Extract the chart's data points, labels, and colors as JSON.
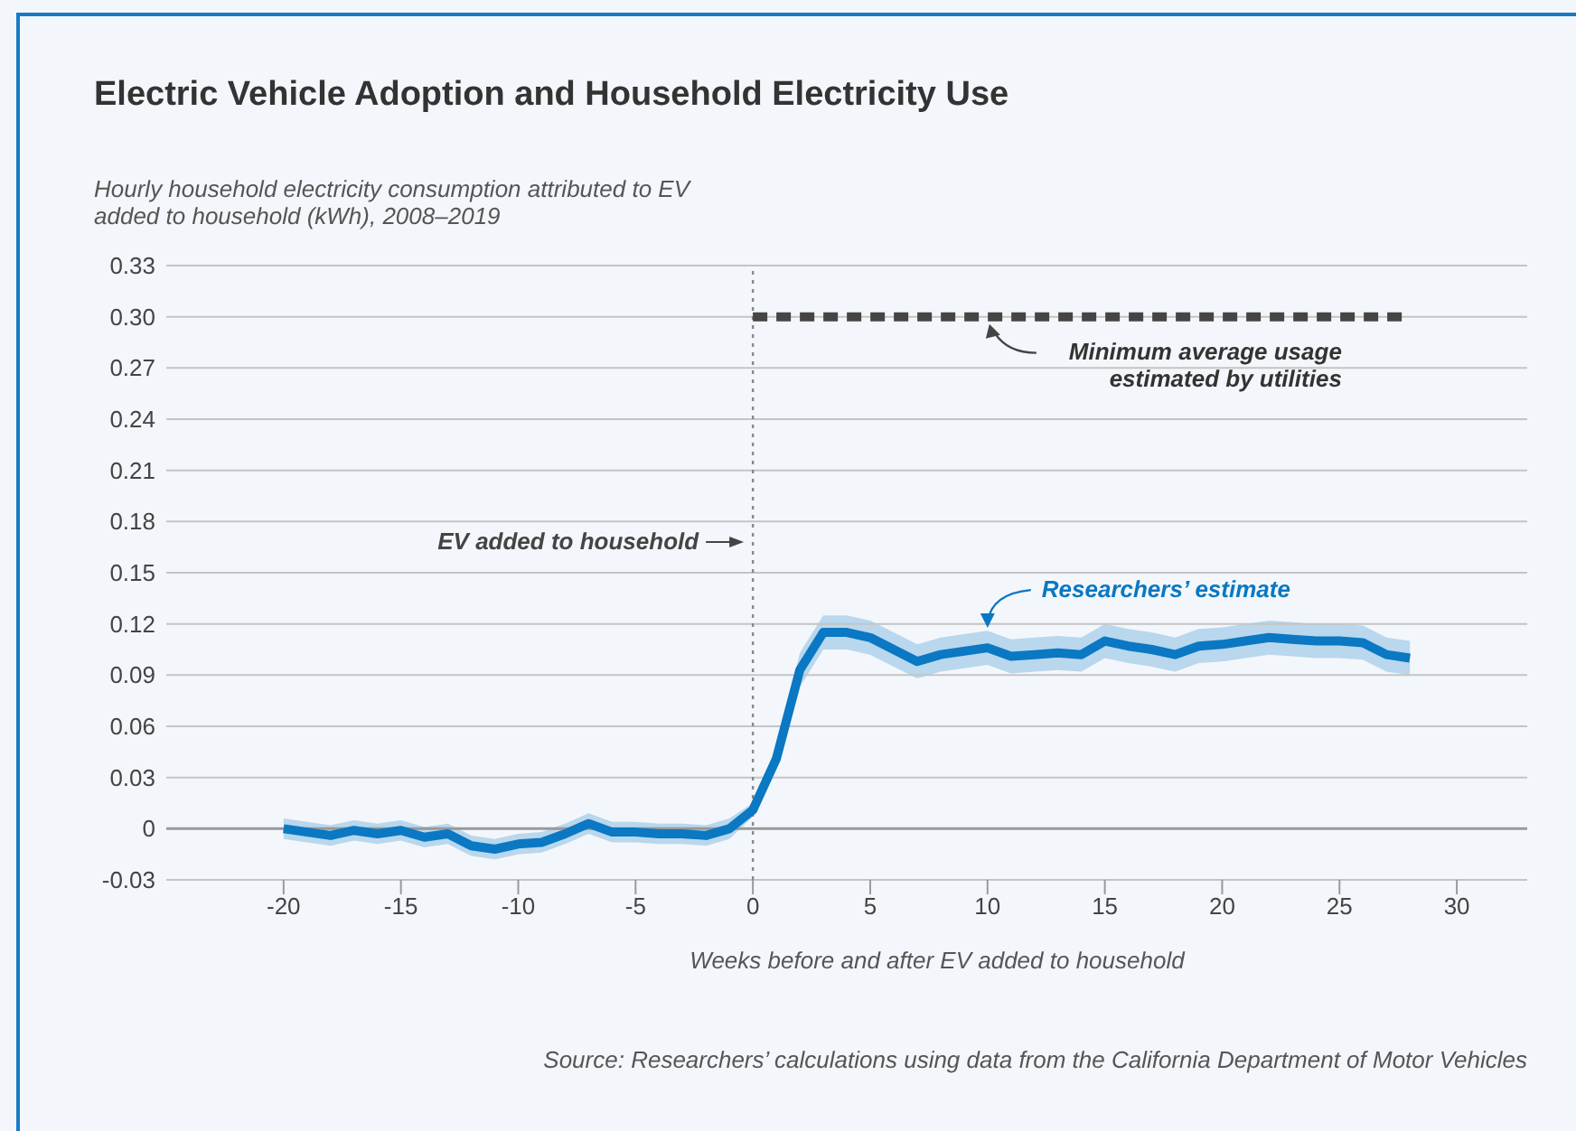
{
  "chart_data": {
    "type": "line",
    "title": "Electric Vehicle Adoption and Household Electricity Use",
    "ylabel": "Hourly household electricity consumption attributed to EV added to household (kWh), 2008–2019",
    "xlabel": "Weeks before and after EV added to household",
    "annotations": [
      "Source: Researchers’ calculations using data from the California Department of Motor Vehicles"
    ],
    "x": [
      -20,
      -19,
      -18,
      -17,
      -16,
      -15,
      -14,
      -13,
      -12,
      -11,
      -10,
      -9,
      -8,
      -7,
      -6,
      -5,
      -4,
      -3,
      -2,
      -1,
      0,
      1,
      2,
      3,
      4,
      5,
      6,
      7,
      8,
      9,
      10,
      11,
      12,
      13,
      14,
      15,
      16,
      17,
      18,
      19,
      20,
      21,
      22,
      23,
      24,
      25,
      26,
      27,
      28
    ],
    "series": [
      {
        "name": "Researchers’ estimate",
        "color": "#0a78c2",
        "values": [
          0.0,
          -0.002,
          -0.004,
          -0.001,
          -0.003,
          -0.001,
          -0.005,
          -0.003,
          -0.01,
          -0.012,
          -0.009,
          -0.008,
          -0.003,
          0.003,
          -0.002,
          -0.002,
          -0.003,
          -0.003,
          -0.004,
          0.0,
          0.011,
          0.041,
          0.093,
          0.115,
          0.115,
          0.112,
          0.105,
          0.098,
          0.102,
          0.104,
          0.106,
          0.101,
          0.102,
          0.103,
          0.102,
          0.11,
          0.107,
          0.105,
          0.102,
          0.107,
          0.108,
          0.11,
          0.112,
          0.111,
          0.11,
          0.11,
          0.109,
          0.102,
          0.1
        ],
        "lower": [
          -0.006,
          -0.008,
          -0.01,
          -0.007,
          -0.009,
          -0.007,
          -0.011,
          -0.009,
          -0.016,
          -0.018,
          -0.015,
          -0.014,
          -0.009,
          -0.003,
          -0.008,
          -0.008,
          -0.009,
          -0.009,
          -0.01,
          -0.006,
          0.007,
          0.037,
          0.083,
          0.105,
          0.105,
          0.102,
          0.095,
          0.088,
          0.092,
          0.094,
          0.096,
          0.091,
          0.092,
          0.093,
          0.092,
          0.1,
          0.097,
          0.095,
          0.092,
          0.097,
          0.098,
          0.1,
          0.102,
          0.101,
          0.1,
          0.1,
          0.099,
          0.092,
          0.09
        ],
        "upper": [
          0.006,
          0.004,
          0.002,
          0.005,
          0.003,
          0.005,
          0.001,
          0.003,
          -0.004,
          -0.006,
          -0.003,
          -0.002,
          0.003,
          0.009,
          0.004,
          0.004,
          0.003,
          0.003,
          0.002,
          0.006,
          0.015,
          0.045,
          0.103,
          0.125,
          0.125,
          0.122,
          0.115,
          0.108,
          0.112,
          0.114,
          0.116,
          0.111,
          0.112,
          0.113,
          0.112,
          0.12,
          0.117,
          0.115,
          0.112,
          0.117,
          0.118,
          0.12,
          0.122,
          0.121,
          0.12,
          0.12,
          0.119,
          0.112,
          0.11
        ]
      },
      {
        "name": "Minimum average usage estimated by utilities",
        "color": "#454545",
        "x": [
          0,
          28
        ],
        "values": [
          0.3,
          0.3
        ],
        "line_style": "dashed"
      }
    ],
    "ref_lines": [
      {
        "axis": "x",
        "value": 0,
        "label": "EV added to household",
        "color": "#888888",
        "line_style": "dotted"
      }
    ],
    "xlim": [
      -25,
      33
    ],
    "xticks": [
      -20,
      -15,
      -10,
      -5,
      0,
      5,
      10,
      15,
      20,
      25,
      30
    ],
    "ylim": [
      -0.03,
      0.33
    ],
    "yticks": [
      -0.03,
      0,
      0.03,
      0.06,
      0.09,
      0.12,
      0.15,
      0.18,
      0.21,
      0.24,
      0.27,
      {
        "value": 0.3,
        "label": "0.30"
      },
      0.33
    ],
    "grid": "y",
    "marker": "none"
  }
}
